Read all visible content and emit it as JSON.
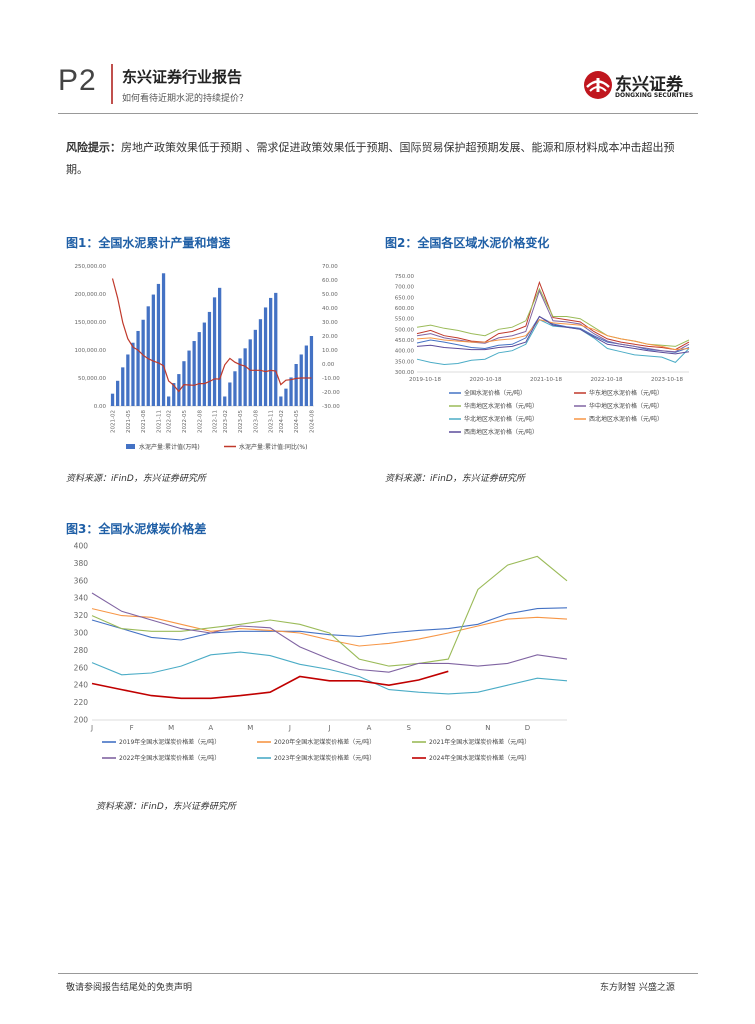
{
  "header": {
    "page": "P2",
    "title": "东兴证券行业报告",
    "subtitle": "如何看待近期水泥的持续提价？",
    "logo_cn": "东兴证券",
    "logo_en": "DONGXING SECURITIES",
    "brand_color": "#c0161e"
  },
  "risk": {
    "label": "风险提示：",
    "text": "房地产政策效果低于预期 、需求促进政策效果低于预期、国际贸易保护超预期发展、能源和原材料成本冲击超出预期。"
  },
  "figures": [
    {
      "title": "图1：全国水泥累计产量和增速",
      "source": "资料来源：iFinD，东兴证券研究所"
    },
    {
      "title": "图2：全国各区域水泥价格变化",
      "source": "资料来源：iFinD，东兴证券研究所"
    },
    {
      "title": "图3：全国水泥煤炭价格差",
      "source": "资料来源：iFinD，东兴证券研究所"
    }
  ],
  "chart_data": [
    {
      "type": "bar",
      "categories": [
        "2021-02",
        "2021-03",
        "2021-04",
        "2021-05",
        "2021-06",
        "2021-07",
        "2021-08",
        "2021-09",
        "2021-10",
        "2021-11",
        "2021-12",
        "2022-02",
        "2022-03",
        "2022-04",
        "2022-05",
        "2022-06",
        "2022-07",
        "2022-08",
        "2022-09",
        "2022-10",
        "2022-11",
        "2022-12",
        "2023-02",
        "2023-03",
        "2023-04",
        "2023-05",
        "2023-06",
        "2023-07",
        "2023-08",
        "2023-09",
        "2023-10",
        "2023-11",
        "2023-12",
        "2024-02",
        "2024-03",
        "2024-04",
        "2024-05",
        "2024-06",
        "2024-07",
        "2024-08"
      ],
      "tick_labels": [
        "2021-02",
        "2021-05",
        "2021-08",
        "2021-11",
        "2022-02",
        "2022-05",
        "2022-08",
        "2022-11",
        "2023-02",
        "2023-05",
        "2023-08",
        "2023-11",
        "2024-02",
        "2024-05",
        "2024-08"
      ],
      "series": [
        {
          "name": "水泥产量:累计值(万吨)",
          "axis": "left",
          "color": "#4472c4",
          "values": [
            22000,
            45000,
            69000,
            92000,
            113000,
            134000,
            154000,
            178000,
            199000,
            218000,
            237000,
            17000,
            41000,
            57000,
            80000,
            99000,
            116000,
            132000,
            149000,
            168000,
            194000,
            211000,
            17000,
            42000,
            62000,
            85000,
            103000,
            119000,
            136000,
            155000,
            176000,
            193000,
            202000,
            17000,
            31000,
            51000,
            75000,
            92000,
            108000,
            125000
          ]
        },
        {
          "name": "水泥产量:累计值:同比(%)",
          "axis": "right",
          "color": "#c0392b",
          "values": [
            61.1,
            47.3,
            29.5,
            18.1,
            12.1,
            9.9,
            6.3,
            3.8,
            2.1,
            0.8,
            -1.2,
            -12.1,
            -15.2,
            -19.6,
            -14.7,
            -15.0,
            -15.2,
            -14.0,
            -14.0,
            -12.5,
            -10.6,
            -10.8,
            -0.6,
            4.0,
            1.3,
            -0.5,
            -1.6,
            -4.5,
            -4.5,
            -4.5,
            -5.4,
            -4.6,
            -5.0,
            -14.7,
            -11.6,
            -11.2,
            -10.3,
            -10.0,
            -10.0,
            -10.0
          ]
        }
      ],
      "yaxis_left_ticks": [
        "250,000.00",
        "200,000.00",
        "150,000.00",
        "100,000.00",
        "50,000.00",
        "0.00"
      ],
      "yaxis_right_ticks": [
        "70.00",
        "60.00",
        "50.00",
        "40.00",
        "30.00",
        "20.00",
        "10.00",
        "0.00",
        "-10.00",
        "-20.00",
        "-30.00"
      ],
      "ylim_left": [
        0,
        250000
      ],
      "ylim_right": [
        -30,
        70
      ],
      "legend_placement": "bottom"
    },
    {
      "type": "line",
      "x_tick_labels": [
        "2019-10-18",
        "2020-10-18",
        "2021-10-18",
        "2022-10-18",
        "2023-10-18"
      ],
      "ylim": [
        300,
        750
      ],
      "yaxis_ticks": [
        "750.00",
        "700.00",
        "650.00",
        "600.00",
        "550.00",
        "500.00",
        "450.00",
        "400.00",
        "350.00",
        "300.00"
      ],
      "series": [
        {
          "name": "全国水泥价格（元/吨）",
          "color": "#4472c4",
          "values": [
            436,
            450,
            440,
            428,
            415,
            410,
            425,
            430,
            460,
            560,
            525,
            512,
            505,
            470,
            440,
            430,
            420,
            405,
            400,
            392,
            415
          ]
        },
        {
          "name": "华东地区水泥价格（元/吨）",
          "color": "#c0392b",
          "values": [
            480,
            495,
            470,
            460,
            445,
            440,
            480,
            490,
            515,
            720,
            555,
            545,
            535,
            490,
            455,
            440,
            430,
            420,
            415,
            405,
            440
          ]
        },
        {
          "name": "华南地区水泥价格（元/吨）",
          "color": "#9bbb59",
          "values": [
            510,
            520,
            505,
            495,
            480,
            470,
            500,
            510,
            540,
            690,
            560,
            560,
            550,
            510,
            470,
            455,
            445,
            430,
            425,
            420,
            450
          ]
        },
        {
          "name": "华中地区水泥价格（元/吨）",
          "color": "#8064a2",
          "values": [
            470,
            480,
            460,
            450,
            440,
            435,
            460,
            470,
            490,
            680,
            540,
            535,
            525,
            480,
            445,
            430,
            420,
            410,
            400,
            395,
            430
          ]
        },
        {
          "name": "华北地区水泥价格（元/吨）",
          "color": "#4bacc6",
          "values": [
            360,
            345,
            335,
            340,
            355,
            360,
            390,
            400,
            430,
            545,
            515,
            510,
            500,
            460,
            410,
            395,
            380,
            375,
            370,
            345,
            410
          ]
        },
        {
          "name": "西北地区水泥价格（元/吨）",
          "color": "#f79646",
          "values": [
            455,
            460,
            450,
            445,
            440,
            440,
            450,
            455,
            470,
            545,
            530,
            525,
            520,
            500,
            470,
            455,
            445,
            430,
            420,
            405,
            410
          ]
        },
        {
          "name": "西南地区水泥价格（元/吨）",
          "color": "#5b4b9a",
          "values": [
            420,
            425,
            415,
            410,
            405,
            405,
            415,
            420,
            440,
            560,
            520,
            510,
            500,
            465,
            430,
            420,
            410,
            400,
            392,
            385,
            395
          ]
        }
      ],
      "legend_placement": "bottom"
    },
    {
      "type": "line",
      "x_tick_labels": [
        "J",
        "F",
        "M",
        "A",
        "M",
        "J",
        "J",
        "A",
        "S",
        "O",
        "N",
        "D"
      ],
      "ylim": [
        200,
        400
      ],
      "yaxis_ticks": [
        "400",
        "380",
        "360",
        "340",
        "320",
        "300",
        "280",
        "260",
        "240",
        "220",
        "200"
      ],
      "series": [
        {
          "name": "2019年全国水泥煤炭价格差（元/吨）",
          "color": "#4472c4",
          "values": [
            315,
            305,
            295,
            292,
            300,
            302,
            302,
            302,
            298,
            296,
            300,
            303,
            305,
            310,
            322,
            328,
            329
          ]
        },
        {
          "name": "2020年全国水泥煤炭价格差（元/吨）",
          "color": "#f79646",
          "values": [
            328,
            320,
            318,
            310,
            302,
            305,
            303,
            300,
            292,
            285,
            288,
            293,
            300,
            308,
            316,
            318,
            316
          ]
        },
        {
          "name": "2021年全国水泥煤炭价格差（元/吨）",
          "color": "#9bbb59",
          "values": [
            320,
            305,
            302,
            302,
            306,
            310,
            315,
            310,
            300,
            270,
            262,
            265,
            270,
            350,
            378,
            388,
            360
          ]
        },
        {
          "name": "2022年全国水泥煤炭价格差（元/吨）",
          "color": "#8064a2",
          "values": [
            346,
            325,
            315,
            305,
            300,
            308,
            306,
            284,
            270,
            258,
            255,
            265,
            265,
            262,
            265,
            275,
            270
          ]
        },
        {
          "name": "2023年全国水泥煤炭价格差（元/吨）",
          "color": "#4bacc6",
          "values": [
            266,
            252,
            254,
            262,
            275,
            278,
            274,
            264,
            258,
            250,
            235,
            232,
            230,
            232,
            240,
            248,
            245
          ]
        },
        {
          "name": "2024年全国水泥煤炭价格差（元/吨）",
          "color": "#c00000",
          "values": [
            242,
            235,
            228,
            225,
            225,
            228,
            232,
            250,
            245,
            245,
            240,
            246,
            256
          ]
        }
      ],
      "legend_placement": "bottom"
    }
  ],
  "footer": {
    "left": "敬请参阅报告结尾处的免责声明",
    "right": "东方财智 兴盛之源"
  }
}
